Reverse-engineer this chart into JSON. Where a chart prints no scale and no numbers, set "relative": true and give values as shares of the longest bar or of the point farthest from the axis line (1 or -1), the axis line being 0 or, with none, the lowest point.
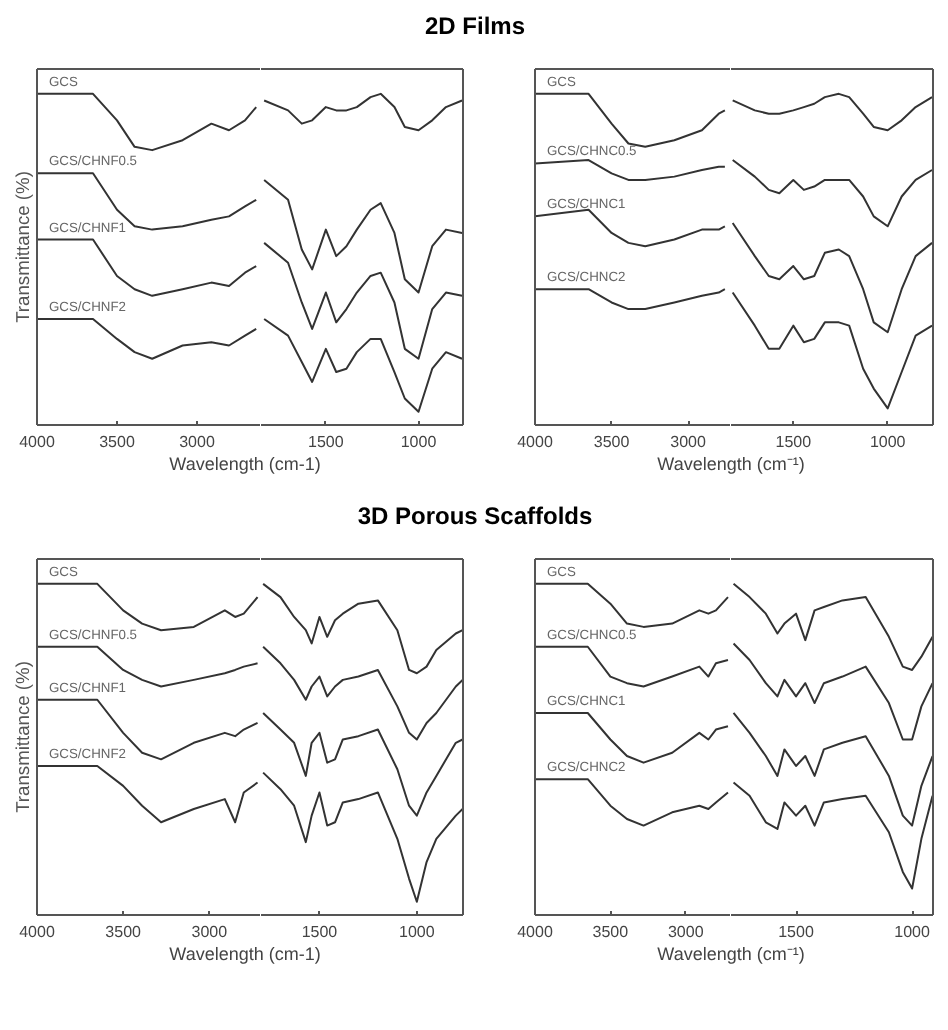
{
  "chart_data": [
    {
      "type": "other",
      "title": "2D Films"
    },
    {
      "type": "line",
      "ylabel": "Transmittance (%)",
      "xlabel": "Wavelength (cm-1)",
      "relative": true,
      "xlim": [
        4000,
        2600
      ],
      "xticks": [
        4000,
        3500,
        3000
      ],
      "x": [
        4000,
        3650,
        3500,
        3390,
        3280,
        3090,
        2910,
        2800,
        2700,
        2630
      ],
      "series": [
        {
          "name": "GCS",
          "color": "#333333",
          "values": [
            1.0,
            1.0,
            0.92,
            0.84,
            0.83,
            0.86,
            0.91,
            0.89,
            0.92,
            0.96
          ]
        },
        {
          "name": "GCS/CHNF0.5",
          "color": "#333333",
          "values": [
            0.76,
            0.76,
            0.65,
            0.6,
            0.59,
            0.6,
            0.62,
            0.63,
            0.66,
            0.68
          ]
        },
        {
          "name": "GCS/CHNF1",
          "color": "#333333",
          "values": [
            0.56,
            0.56,
            0.45,
            0.41,
            0.39,
            0.41,
            0.43,
            0.42,
            0.46,
            0.48
          ]
        },
        {
          "name": "GCS/CHNF2",
          "color": "#333333",
          "values": [
            0.32,
            0.32,
            0.26,
            0.22,
            0.2,
            0.24,
            0.25,
            0.24,
            0.27,
            0.29
          ]
        }
      ]
    },
    {
      "type": "line",
      "relative": true,
      "xlim": [
        1850,
        760
      ],
      "xticks": [
        1500,
        1000
      ],
      "x": [
        1833,
        1704,
        1630,
        1574,
        1500,
        1444,
        1389,
        1333,
        1259,
        1204,
        1130,
        1074,
        1000,
        926,
        852,
        765
      ],
      "series": [
        {
          "color": "#333333",
          "values": [
            0.98,
            0.95,
            0.91,
            0.92,
            0.96,
            0.95,
            0.95,
            0.96,
            0.99,
            1.0,
            0.96,
            0.9,
            0.89,
            0.92,
            0.96,
            0.98
          ]
        },
        {
          "color": "#333333",
          "values": [
            0.74,
            0.68,
            0.53,
            0.47,
            0.59,
            0.51,
            0.54,
            0.59,
            0.65,
            0.67,
            0.58,
            0.44,
            0.4,
            0.54,
            0.59,
            0.58
          ]
        },
        {
          "color": "#333333",
          "values": [
            0.55,
            0.49,
            0.37,
            0.29,
            0.4,
            0.31,
            0.35,
            0.4,
            0.45,
            0.46,
            0.37,
            0.23,
            0.2,
            0.35,
            0.4,
            0.39
          ]
        },
        {
          "color": "#333333",
          "values": [
            0.32,
            0.27,
            0.19,
            0.13,
            0.23,
            0.16,
            0.17,
            0.22,
            0.26,
            0.26,
            0.16,
            0.08,
            0.04,
            0.17,
            0.22,
            0.2
          ]
        }
      ]
    },
    {
      "type": "line",
      "xlabel": "Wavelength (cm⁻¹)",
      "relative": true,
      "xlim": [
        4000,
        2720
      ],
      "xticks": [
        4000,
        3500,
        3000
      ],
      "x": [
        4000,
        3650,
        3500,
        3390,
        3280,
        3090,
        2910,
        2800,
        2760
      ],
      "series": [
        {
          "name": "GCS",
          "color": "#333333",
          "values": [
            1.0,
            1.0,
            0.91,
            0.85,
            0.84,
            0.86,
            0.89,
            0.94,
            0.95
          ]
        },
        {
          "name": "GCS/CHNC0.5",
          "color": "#333333",
          "values": [
            0.79,
            0.8,
            0.76,
            0.74,
            0.74,
            0.75,
            0.77,
            0.78,
            0.78
          ]
        },
        {
          "name": "GCS/CHNC1",
          "color": "#333333",
          "values": [
            0.63,
            0.65,
            0.58,
            0.55,
            0.54,
            0.56,
            0.59,
            0.59,
            0.6
          ]
        },
        {
          "name": "GCS/CHNC2",
          "color": "#333333",
          "values": [
            0.41,
            0.41,
            0.37,
            0.35,
            0.35,
            0.37,
            0.39,
            0.4,
            0.41
          ]
        }
      ]
    },
    {
      "type": "line",
      "relative": true,
      "xlim": [
        1830,
        760
      ],
      "xticks": [
        1500,
        1000
      ],
      "x": [
        1821,
        1704,
        1630,
        1574,
        1500,
        1444,
        1389,
        1333,
        1259,
        1204,
        1130,
        1074,
        1000,
        926,
        852,
        765
      ],
      "series": [
        {
          "color": "#333333",
          "values": [
            0.98,
            0.95,
            0.94,
            0.94,
            0.95,
            0.96,
            0.97,
            0.99,
            1.0,
            0.99,
            0.94,
            0.9,
            0.89,
            0.92,
            0.96,
            0.99
          ]
        },
        {
          "color": "#333333",
          "values": [
            0.8,
            0.75,
            0.71,
            0.7,
            0.74,
            0.71,
            0.72,
            0.74,
            0.74,
            0.74,
            0.69,
            0.63,
            0.6,
            0.69,
            0.74,
            0.77
          ]
        },
        {
          "color": "#333333",
          "values": [
            0.61,
            0.51,
            0.45,
            0.44,
            0.48,
            0.44,
            0.45,
            0.52,
            0.53,
            0.51,
            0.41,
            0.31,
            0.28,
            0.41,
            0.51,
            0.55
          ]
        },
        {
          "color": "#333333",
          "values": [
            0.4,
            0.3,
            0.23,
            0.23,
            0.3,
            0.25,
            0.26,
            0.31,
            0.31,
            0.3,
            0.17,
            0.11,
            0.05,
            0.16,
            0.27,
            0.3
          ]
        }
      ]
    },
    {
      "type": "other",
      "title": "3D Porous Scaffolds"
    },
    {
      "type": "line",
      "ylabel": "Transmittance (%)",
      "xlabel": "Wavelength (cm-1)",
      "relative": true,
      "xlim": [
        4000,
        2700
      ],
      "xticks": [
        4000,
        3500,
        3000
      ],
      "x": [
        4000,
        3650,
        3500,
        3390,
        3280,
        3090,
        2910,
        2850,
        2800,
        2720
      ],
      "series": [
        {
          "name": "GCS",
          "color": "#333333",
          "values": [
            1.0,
            1.0,
            0.92,
            0.88,
            0.86,
            0.87,
            0.92,
            0.9,
            0.91,
            0.96
          ]
        },
        {
          "name": "GCS/CHNF0.5",
          "color": "#333333",
          "values": [
            0.81,
            0.81,
            0.74,
            0.71,
            0.69,
            0.71,
            0.73,
            0.74,
            0.75,
            0.76
          ]
        },
        {
          "name": "GCS/CHNF1",
          "color": "#333333",
          "values": [
            0.65,
            0.65,
            0.55,
            0.49,
            0.47,
            0.52,
            0.55,
            0.54,
            0.56,
            0.58
          ]
        },
        {
          "name": "GCS/CHNF2",
          "color": "#333333",
          "values": [
            0.45,
            0.45,
            0.39,
            0.33,
            0.28,
            0.32,
            0.35,
            0.28,
            0.37,
            0.4
          ]
        }
      ]
    },
    {
      "type": "line",
      "relative": true,
      "xlim": [
        1800,
        763
      ],
      "xticks": [
        1500,
        1000
      ],
      "x": [
        1789,
        1700,
        1630,
        1570,
        1540,
        1500,
        1460,
        1420,
        1380,
        1300,
        1200,
        1100,
        1040,
        1000,
        950,
        900,
        800,
        765
      ],
      "series": [
        {
          "color": "#333333",
          "values": [
            1.0,
            0.96,
            0.9,
            0.86,
            0.82,
            0.9,
            0.84,
            0.89,
            0.91,
            0.94,
            0.95,
            0.86,
            0.74,
            0.73,
            0.75,
            0.8,
            0.85,
            0.86
          ]
        },
        {
          "color": "#333333",
          "values": [
            0.81,
            0.76,
            0.71,
            0.65,
            0.69,
            0.72,
            0.66,
            0.69,
            0.71,
            0.72,
            0.74,
            0.63,
            0.55,
            0.53,
            0.58,
            0.61,
            0.69,
            0.71
          ]
        },
        {
          "color": "#333333",
          "values": [
            0.61,
            0.56,
            0.52,
            0.42,
            0.52,
            0.55,
            0.46,
            0.47,
            0.53,
            0.54,
            0.56,
            0.44,
            0.33,
            0.3,
            0.37,
            0.42,
            0.52,
            0.53
          ]
        },
        {
          "color": "#333333",
          "values": [
            0.43,
            0.38,
            0.33,
            0.22,
            0.3,
            0.37,
            0.27,
            0.28,
            0.34,
            0.35,
            0.37,
            0.23,
            0.11,
            0.04,
            0.16,
            0.23,
            0.3,
            0.32
          ]
        }
      ]
    },
    {
      "type": "line",
      "xlabel": "Wavelength (cm⁻¹)",
      "relative": true,
      "xlim": [
        4000,
        2700
      ],
      "xticks": [
        4000,
        3500,
        3000
      ],
      "x": [
        4000,
        3650,
        3500,
        3390,
        3280,
        3090,
        2910,
        2850,
        2800,
        2720
      ],
      "series": [
        {
          "name": "GCS",
          "color": "#333333",
          "values": [
            1.0,
            1.0,
            0.94,
            0.88,
            0.87,
            0.88,
            0.92,
            0.91,
            0.92,
            0.96
          ]
        },
        {
          "name": "GCS/CHNC0.5",
          "color": "#333333",
          "values": [
            0.81,
            0.81,
            0.72,
            0.7,
            0.69,
            0.72,
            0.75,
            0.72,
            0.76,
            0.77
          ]
        },
        {
          "name": "GCS/CHNC1",
          "color": "#333333",
          "values": [
            0.61,
            0.61,
            0.53,
            0.48,
            0.46,
            0.49,
            0.55,
            0.53,
            0.56,
            0.57
          ]
        },
        {
          "name": "GCS/CHNC2",
          "color": "#333333",
          "values": [
            0.41,
            0.41,
            0.33,
            0.29,
            0.27,
            0.31,
            0.33,
            0.32,
            0.34,
            0.37
          ]
        }
      ]
    },
    {
      "type": "line",
      "relative": true,
      "xlim": [
        1780,
        910
      ],
      "xticks": [
        1500,
        1000
      ],
      "x": [
        1769,
        1700,
        1630,
        1580,
        1550,
        1500,
        1460,
        1420,
        1380,
        1300,
        1200,
        1100,
        1040,
        1000,
        960,
        912
      ],
      "series": [
        {
          "color": "#333333",
          "values": [
            1.0,
            0.96,
            0.91,
            0.85,
            0.88,
            0.91,
            0.83,
            0.92,
            0.93,
            0.95,
            0.96,
            0.84,
            0.75,
            0.74,
            0.78,
            0.84
          ]
        },
        {
          "color": "#333333",
          "values": [
            0.82,
            0.77,
            0.7,
            0.66,
            0.71,
            0.66,
            0.7,
            0.64,
            0.7,
            0.72,
            0.75,
            0.64,
            0.53,
            0.53,
            0.63,
            0.7
          ]
        },
        {
          "color": "#333333",
          "values": [
            0.61,
            0.55,
            0.48,
            0.42,
            0.5,
            0.45,
            0.48,
            0.42,
            0.5,
            0.52,
            0.54,
            0.42,
            0.3,
            0.27,
            0.39,
            0.48
          ]
        },
        {
          "color": "#333333",
          "values": [
            0.4,
            0.36,
            0.28,
            0.26,
            0.34,
            0.3,
            0.33,
            0.27,
            0.34,
            0.35,
            0.36,
            0.25,
            0.13,
            0.08,
            0.23,
            0.36
          ]
        }
      ]
    }
  ]
}
